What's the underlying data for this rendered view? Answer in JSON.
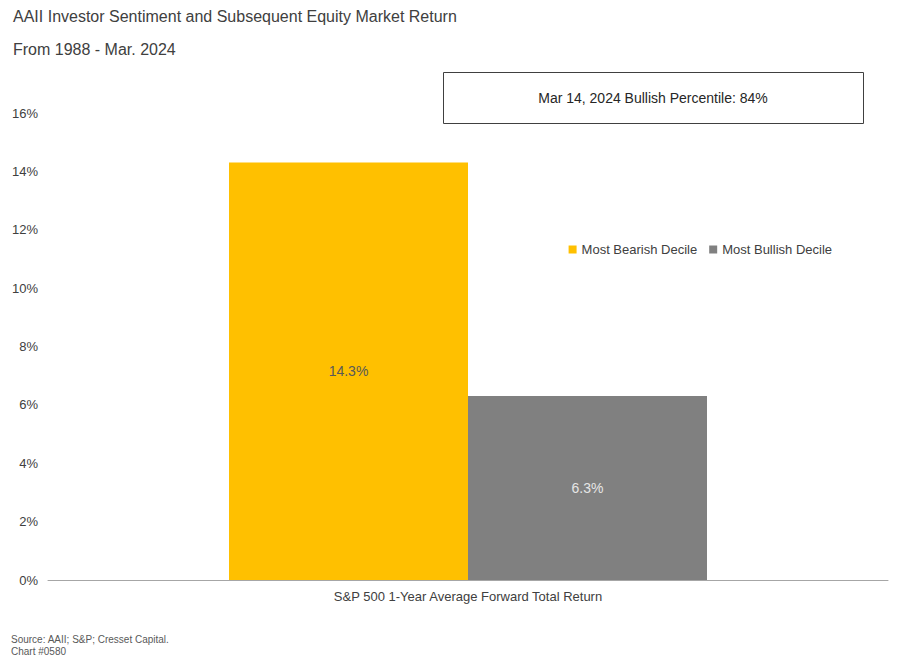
{
  "chart_data": {
    "type": "bar",
    "title": "AAII Investor Sentiment and Subsequent Equity Market Return",
    "subtitle": "From 1988 - Mar. 2024",
    "annotation": "Mar 14, 2024 Bullish Percentile: 84%",
    "source": "Source: AAII; S&P; Cresset Capital.",
    "chart_number": "Chart #0580",
    "categories": [
      "S&P 500 1-Year Average Forward Total Return"
    ],
    "series": [
      {
        "name": "Most Bearish Decile",
        "color": "#FFC000",
        "values": [
          14.3
        ],
        "value_labels": [
          "14.3%"
        ]
      },
      {
        "name": "Most Bullish Decile",
        "color": "#808080",
        "values": [
          6.3
        ],
        "value_labels": [
          "6.3%"
        ]
      }
    ],
    "ylim": [
      0,
      16
    ],
    "yticks": [
      {
        "value": 0,
        "label": "0%"
      },
      {
        "value": 2,
        "label": "2%"
      },
      {
        "value": 4,
        "label": "4%"
      },
      {
        "value": 6,
        "label": "6%"
      },
      {
        "value": 8,
        "label": "8%"
      },
      {
        "value": 10,
        "label": "10%"
      },
      {
        "value": 12,
        "label": "12%"
      },
      {
        "value": 14,
        "label": "14%"
      },
      {
        "value": 16,
        "label": "16%"
      }
    ],
    "grid": false,
    "legend": "right",
    "data_labels": true
  }
}
